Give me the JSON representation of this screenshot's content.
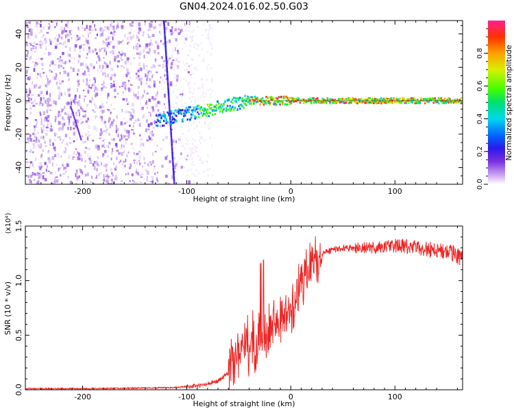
{
  "figure": {
    "title": "GN04.2024.016.02.50.G03"
  },
  "chart_data": [
    {
      "type": "heatmap",
      "xlabel": "Height of straight line (km)",
      "ylabel": "Frequency (Hz)",
      "xlim": [
        -255,
        165
      ],
      "ylim": [
        -50,
        48
      ],
      "xticks": [
        -200,
        -100,
        0,
        100
      ],
      "yticks": [
        -40,
        -20,
        0,
        20,
        40
      ],
      "colorbar": {
        "label": "Normalized spectral amplitude",
        "range": [
          0,
          1
        ],
        "ticks": [
          "0.0",
          "0.2",
          "0.4",
          "0.6",
          "0.8"
        ],
        "colormap": [
          "#ffffff",
          "#c8a0f0",
          "#7b2fe0",
          "#2a1ae8",
          "#0066ff",
          "#00d8f0",
          "#00e070",
          "#40ff00",
          "#d8f000",
          "#ffa000",
          "#ff3000",
          "#ff2090"
        ]
      },
      "features": {
        "noise_region_x": [
          -255,
          -100
        ],
        "signal_line_frequency": 0,
        "signal_start_x": -130,
        "steep_streak_x": [
          -122,
          -112
        ]
      }
    },
    {
      "type": "line",
      "xlabel": "Height of straight line (km)",
      "ylabel": "SNR (10 * v/v)",
      "multiplier": "(x10⁴)",
      "xlim": [
        -255,
        165
      ],
      "ylim": [
        0,
        1.5
      ],
      "xticks": [
        -200,
        -100,
        0,
        100
      ],
      "yticks": [
        "0.0",
        "0.5",
        "1.0",
        "1.5"
      ],
      "color": "#ee2222",
      "series": [
        {
          "x": [
            -255,
            -200,
            -150,
            -110,
            -100,
            -85,
            -70,
            -60,
            -55,
            -50,
            -45,
            -40,
            -35,
            -30,
            -25,
            -20,
            -15,
            -10,
            -5,
            0,
            5,
            10,
            15,
            20,
            30,
            40,
            50,
            60,
            80,
            100,
            120,
            140,
            165
          ],
          "values": [
            0.01,
            0.01,
            0.015,
            0.02,
            0.03,
            0.04,
            0.08,
            0.15,
            0.3,
            0.35,
            0.4,
            0.42,
            0.45,
            0.5,
            0.55,
            0.6,
            0.62,
            0.65,
            0.68,
            0.75,
            0.85,
            0.95,
            1.05,
            1.15,
            1.25,
            1.28,
            1.3,
            1.3,
            1.3,
            1.32,
            1.3,
            1.28,
            1.22
          ]
        }
      ]
    }
  ]
}
